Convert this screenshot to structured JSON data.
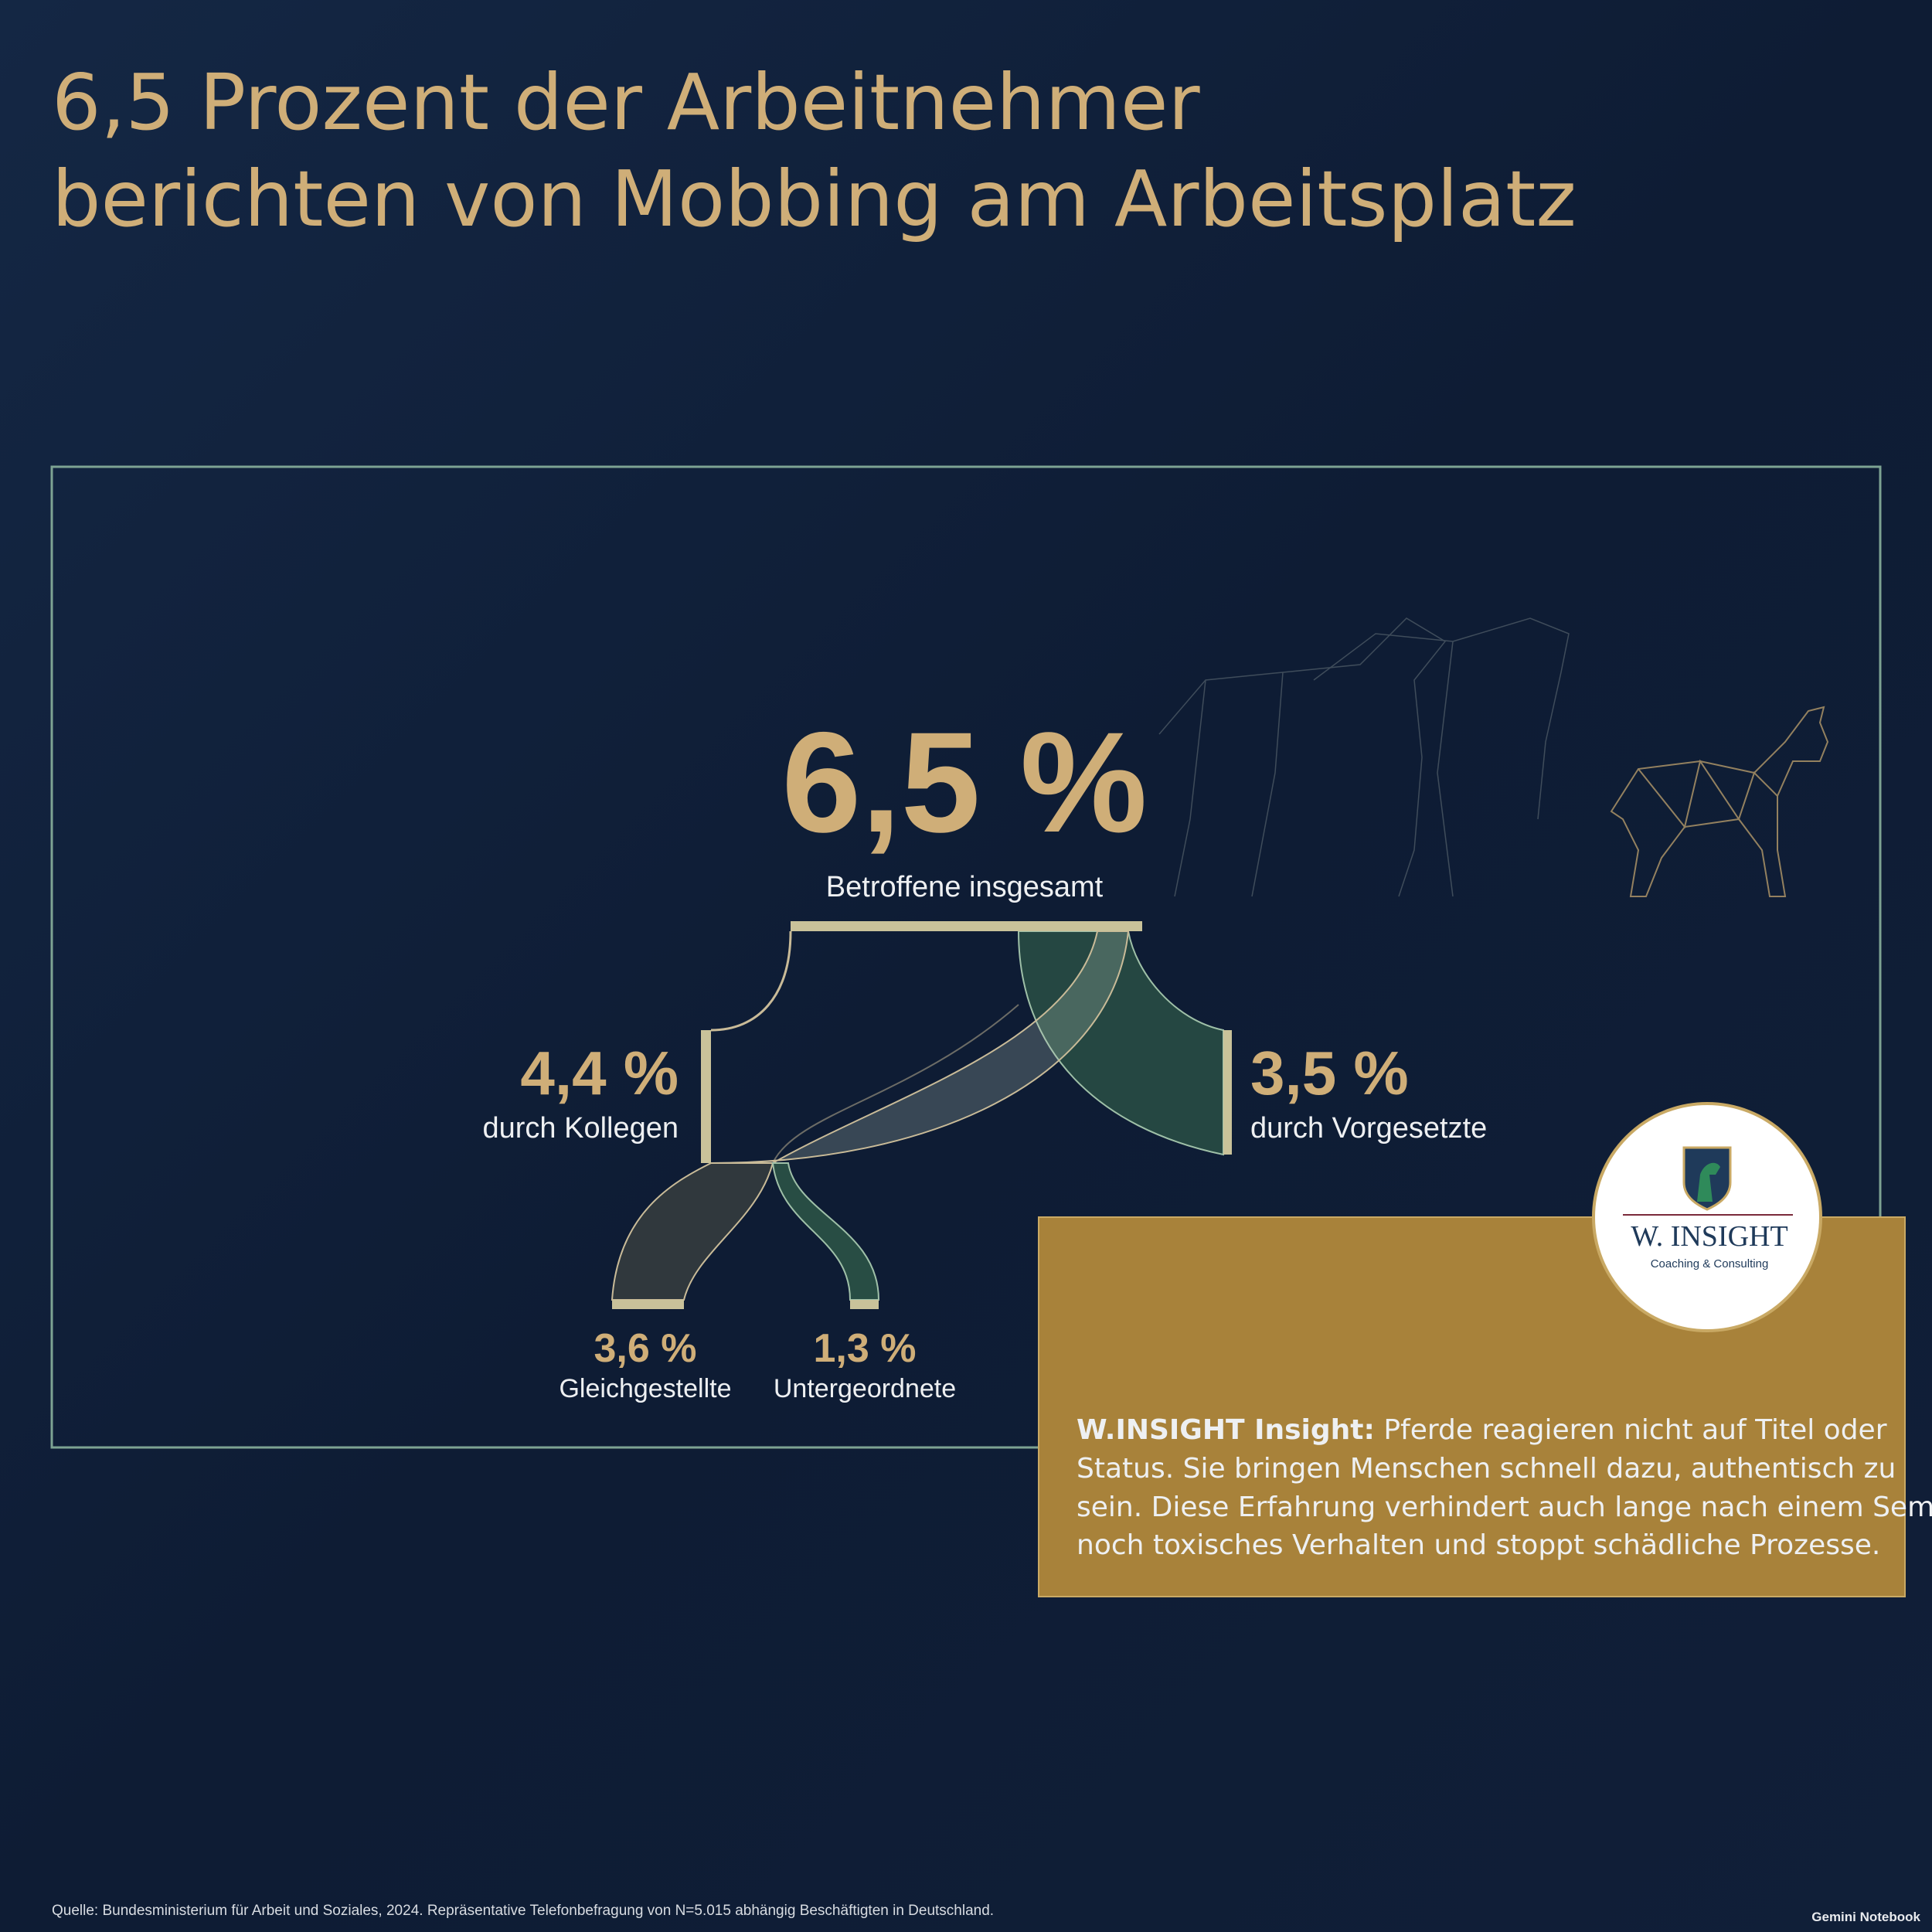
{
  "title": [
    "6,5 Prozent der Arbeitnehmer",
    "berichten von Mobbing am Arbeitsplatz"
  ],
  "total": {
    "value": "6,5 %",
    "label": "Betroffene insgesamt"
  },
  "branches": [
    {
      "value": "4,4 %",
      "label": "durch Kollegen"
    },
    {
      "value": "3,5 %",
      "label": "durch Vorgesetzte"
    },
    {
      "value": "3,6 %",
      "label": "Gleichgestellte"
    },
    {
      "value": "1,3 %",
      "label": "Untergeordnete"
    }
  ],
  "logo": {
    "name": "W. INSIGHT",
    "tagline": "Coaching & Consulting"
  },
  "insight": {
    "lead": "W.INSIGHT Insight:",
    "lines": [
      "Pferde reagieren nicht auf Titel oder",
      "Status. Sie bringen Menschen schnell dazu, authentisch zu",
      "sein. Diese Erfahrung verhindert auch lange nach einem Seminar",
      "noch toxisches Verhalten und stoppt schädliche Prozesse."
    ]
  },
  "source": "Quelle: Bundesministerium für Arbeit und Soziales, 2024. Repräsentative Telefonbefragung von N=5.015 abhängig Beschäftigten in Deutschland.",
  "watermark": "Gemini Notebook"
}
